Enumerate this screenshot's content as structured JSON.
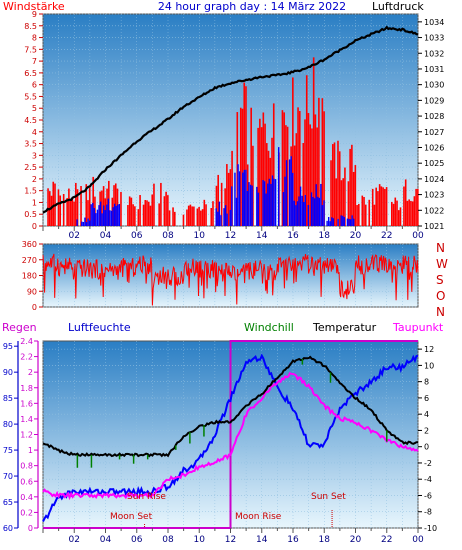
{
  "title": "24 hour graph day : 14 März 2022",
  "colors": {
    "wind_avg": "#0000ff",
    "wind_gust": "#ff0000",
    "pressure": "#000000",
    "direction": "#ff0000",
    "humidity": "#0000ff",
    "temperature": "#000000",
    "windchill": "#008000",
    "dewpoint": "#ff00ff",
    "rain": "#cc00cc",
    "sun": "#cc0000",
    "moon": "#cc0000"
  },
  "chart_data": [
    {
      "type": "bar",
      "name": "wind-pressure",
      "title": "24 hour graph day : 14 März 2022",
      "left_label": "Windstärke",
      "right_label": "Luftdruck",
      "x_ticks": [
        "02",
        "04",
        "06",
        "08",
        "10",
        "12",
        "14",
        "16",
        "18",
        "20",
        "22",
        "00"
      ],
      "xlim": [
        0,
        24
      ],
      "ylim_left": [
        0,
        9
      ],
      "ylim_right": [
        1021,
        1034.5
      ],
      "left_ticks": [
        "0",
        "0.5",
        "1",
        "1.5",
        "2",
        "2.5",
        "3",
        "3.5",
        "4",
        "4.5",
        "5",
        "5.5",
        "6",
        "6.5",
        "7",
        "7.5",
        "8",
        "8.5",
        "9"
      ],
      "right_ticks": [
        "1021",
        "1022",
        "1023",
        "1024",
        "1025",
        "1026",
        "1027",
        "1028",
        "1029",
        "1030",
        "1031",
        "1032",
        "1033",
        "1034"
      ],
      "pressure": {
        "x": [
          0,
          1,
          2,
          3,
          4,
          5,
          6,
          7,
          8,
          9,
          10,
          11,
          12,
          13,
          14,
          15,
          16,
          17,
          18,
          19,
          20,
          21,
          22,
          23,
          24
        ],
        "y": [
          1021.9,
          1022.4,
          1022.8,
          1023.5,
          1024.6,
          1025.5,
          1026.4,
          1027.1,
          1027.8,
          1028.6,
          1029.2,
          1029.8,
          1030.1,
          1030.3,
          1030.5,
          1030.6,
          1030.8,
          1031.1,
          1031.6,
          1032.2,
          1032.8,
          1033.2,
          1033.6,
          1033.5,
          1033.2
        ]
      },
      "wind_avg_levels": [
        0,
        0,
        0.3,
        0.9,
        1.2,
        0,
        0,
        0,
        0,
        0,
        0,
        0.9,
        2.3,
        1.6,
        1.9,
        2.8,
        1.4,
        1.6,
        0.4,
        0.4,
        0,
        0,
        0,
        0
      ],
      "wind_gust_levels": [
        1.8,
        1.5,
        1.6,
        1.9,
        1.7,
        1.1,
        1.2,
        1.6,
        0.8,
        0.9,
        1.0,
        2.4,
        5.4,
        4.6,
        4.8,
        5.6,
        5.8,
        6.3,
        3.2,
        3.1,
        1.3,
        1.6,
        1.1,
        1.8
      ]
    },
    {
      "type": "line",
      "name": "wind-direction",
      "ylim": [
        0,
        360
      ],
      "y_ticks": [
        "0",
        "90",
        "180",
        "270",
        "360"
      ],
      "compass_labels": [
        "N",
        "W",
        "S",
        "O",
        "N"
      ],
      "hourly_direction": [
        250,
        230,
        220,
        215,
        210,
        225,
        240,
        180,
        175,
        230,
        220,
        200,
        190,
        210,
        200,
        240,
        250,
        230,
        225,
        100,
        240,
        245,
        235,
        240
      ]
    },
    {
      "type": "line",
      "name": "weather",
      "labels": {
        "rain": "Regen",
        "humidity": "Luftfeuchte",
        "windchill": "Windchill",
        "temperature": "Temperatur",
        "dewpoint": "Taupunkt"
      },
      "rain_ticks": [
        "0",
        "0.2",
        "0.4",
        "0.6",
        "0.8",
        "1",
        "1.2",
        "1.4",
        "1.6",
        "1.8",
        "2",
        "2.2",
        "2.4"
      ],
      "rain_range": [
        0,
        2.4
      ],
      "humidity_ticks": [
        "60",
        "65",
        "70",
        "75",
        "80",
        "85",
        "90",
        "95"
      ],
      "humidity_range": [
        60,
        96
      ],
      "temp_ticks": [
        "-10",
        "-8",
        "-6",
        "-4",
        "-2",
        "0",
        "2",
        "4",
        "6",
        "8",
        "10",
        "12"
      ],
      "temp_range": [
        -10,
        13
      ],
      "x": [
        0,
        1,
        2,
        3,
        4,
        5,
        6,
        7,
        8,
        9,
        10,
        11,
        12,
        13,
        14,
        15,
        16,
        17,
        18,
        19,
        20,
        21,
        22,
        23,
        24
      ],
      "temperature": [
        0.5,
        -0.5,
        -1,
        -1,
        -1,
        -1,
        -1,
        -1,
        -1,
        1.3,
        2.5,
        3,
        3,
        5,
        6.5,
        8.5,
        10.5,
        11,
        10,
        7.8,
        6,
        4.5,
        2,
        0.5,
        0.5
      ],
      "dewpoint": [
        -5.5,
        -6,
        -6,
        -6,
        -6,
        -6,
        -6,
        -6,
        -4,
        -3.5,
        -2.5,
        -2,
        -1,
        4,
        6,
        8,
        9,
        7.5,
        5,
        3.5,
        3,
        2,
        0.8,
        0,
        -0.5
      ],
      "humidity": [
        61,
        66,
        67,
        67,
        67,
        67,
        67,
        67,
        68,
        71,
        73,
        78,
        85,
        92,
        93,
        87,
        83,
        76,
        76,
        83,
        86,
        88,
        91,
        91,
        93
      ],
      "rain": [
        0,
        0,
        0,
        0,
        0,
        0,
        0,
        0,
        0,
        0,
        0,
        0,
        2.4,
        2.4,
        2.4,
        2.4,
        2.4,
        2.4,
        2.4,
        2.4,
        2.4,
        2.4,
        2.4,
        2.4,
        2.4
      ],
      "annotations": {
        "moon_set": "Moon Set",
        "moon_rise": "Moon Rise",
        "sun_rise": "Sun Rise",
        "sun_set": "Sun Set"
      },
      "event_hours": {
        "moon_set": 6.5,
        "moon_rise": 11.7,
        "sun_rise": 6.5,
        "sun_set": 18.5
      }
    }
  ]
}
